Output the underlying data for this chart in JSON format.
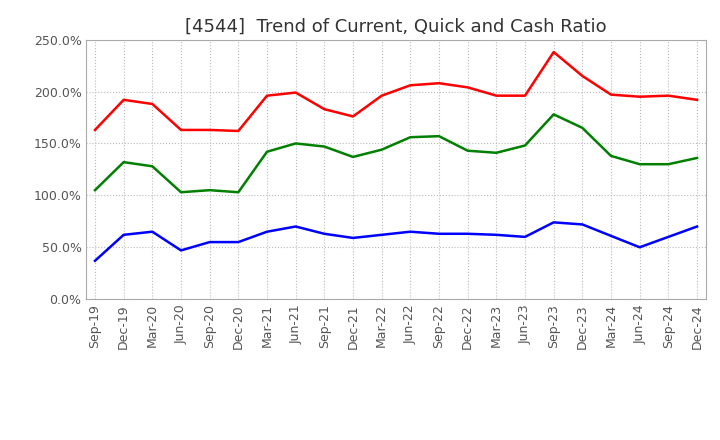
{
  "title": "[4544]  Trend of Current, Quick and Cash Ratio",
  "x_labels": [
    "Sep-19",
    "Dec-19",
    "Mar-20",
    "Jun-20",
    "Sep-20",
    "Dec-20",
    "Mar-21",
    "Jun-21",
    "Sep-21",
    "Dec-21",
    "Mar-22",
    "Jun-22",
    "Sep-22",
    "Dec-22",
    "Mar-23",
    "Jun-23",
    "Sep-23",
    "Dec-23",
    "Mar-24",
    "Jun-24",
    "Sep-24",
    "Dec-24"
  ],
  "current_ratio": [
    163,
    192,
    188,
    163,
    163,
    162,
    196,
    199,
    183,
    176,
    196,
    206,
    208,
    204,
    196,
    196,
    238,
    215,
    197,
    195,
    196,
    192
  ],
  "quick_ratio": [
    105,
    132,
    128,
    103,
    105,
    103,
    142,
    150,
    147,
    137,
    144,
    156,
    157,
    143,
    141,
    148,
    178,
    165,
    138,
    130,
    130,
    136
  ],
  "cash_ratio": [
    37,
    62,
    65,
    47,
    55,
    55,
    65,
    70,
    63,
    59,
    62,
    65,
    63,
    63,
    62,
    60,
    74,
    72,
    61,
    50,
    60,
    70
  ],
  "ylim": [
    0,
    250
  ],
  "yticks": [
    0,
    50,
    100,
    150,
    200,
    250
  ],
  "line_colors": {
    "current": "#ff0000",
    "quick": "#008000",
    "cash": "#0000ff"
  },
  "background_color": "#ffffff",
  "grid_color": "#bbbbbb",
  "title_color": "#333333",
  "tick_color": "#555555",
  "title_fontsize": 13,
  "tick_fontsize": 9,
  "legend_fontsize": 10,
  "linewidth": 1.8
}
